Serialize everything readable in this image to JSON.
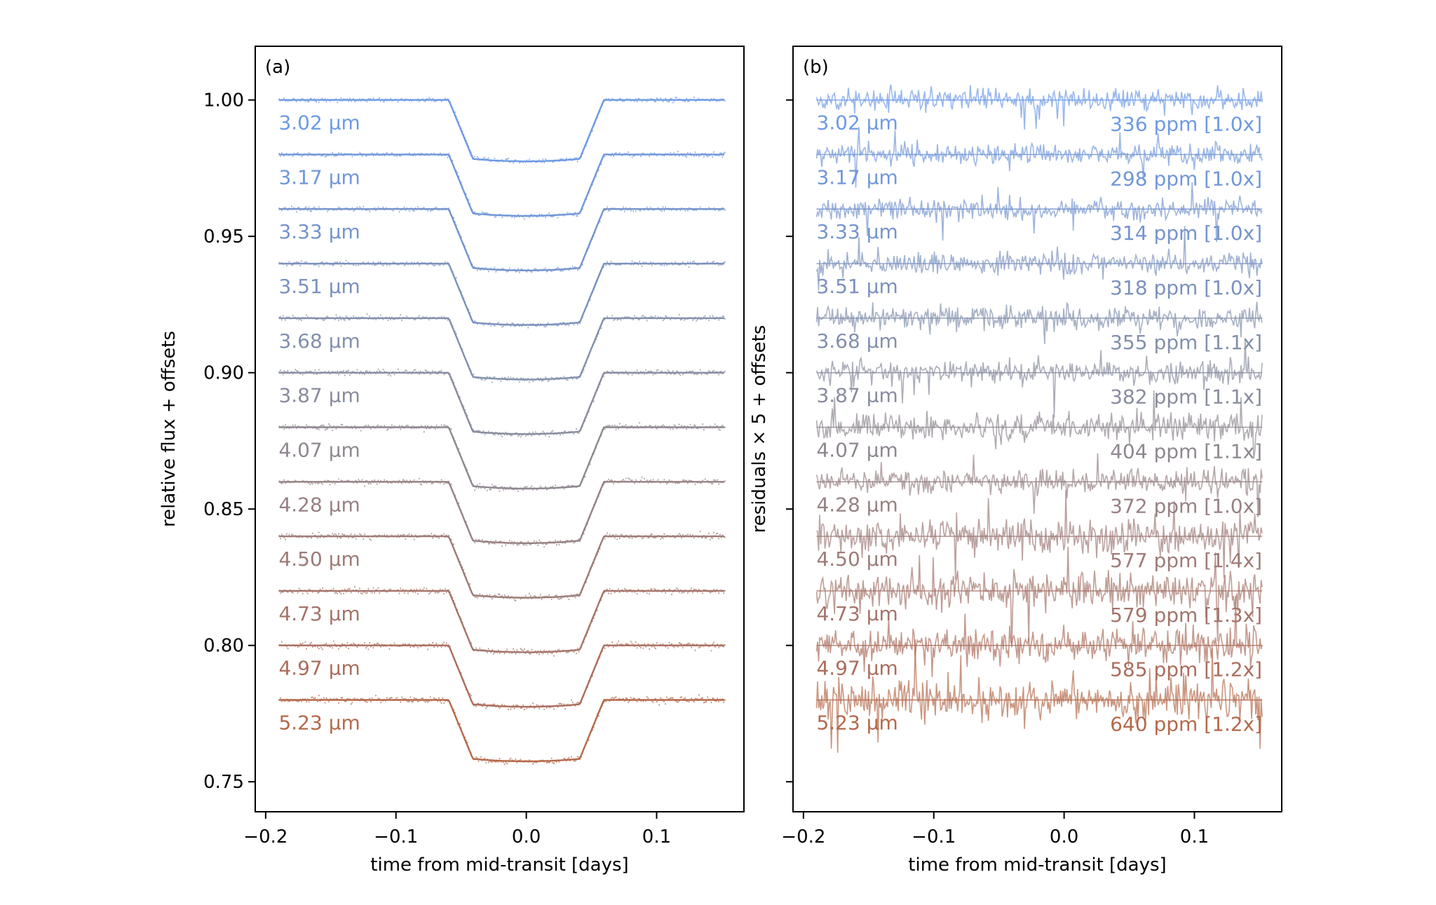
{
  "figure": {
    "panels": [
      {
        "panel_label": "(a)",
        "xlabel": "time from mid-transit [days]",
        "ylabel": "relative flux + offsets",
        "xticks": [
          -0.2,
          -0.1,
          0.0,
          0.1
        ],
        "xtick_labels": [
          "−0.2",
          "−0.1",
          "0.0",
          "0.1"
        ],
        "yticks": [
          1.0,
          0.95,
          0.9,
          0.85,
          0.8,
          0.75
        ],
        "ytick_labels": [
          "1.00",
          "0.95",
          "0.90",
          "0.85",
          "0.80",
          "0.75"
        ]
      },
      {
        "panel_label": "(b)",
        "xlabel": "time from mid-transit [days]",
        "ylabel": "residuals × 5 + offsets",
        "xticks": [
          -0.2,
          -0.1,
          0.0,
          0.1
        ],
        "xtick_labels": [
          "−0.2",
          "−0.1",
          "0.0",
          "0.1"
        ]
      }
    ]
  },
  "chart_data": [
    {
      "type": "line",
      "panel": "(a)",
      "xlabel": "time from mid-transit [days]",
      "ylabel": "relative flux + offsets",
      "xlim": [
        -0.208,
        0.167
      ],
      "ylim": [
        0.739,
        1.0197
      ],
      "transit": {
        "t_first_contact": -0.0595,
        "t_second_contact": -0.041,
        "t_third_contact": 0.041,
        "t_fourth_contact": 0.0595,
        "depth": 0.0225,
        "x_range": [
          -0.19,
          0.152
        ]
      },
      "series": [
        {
          "name": "3.02 μm",
          "offset": 1.0,
          "color": "#6e9ae4"
        },
        {
          "name": "3.17 μm",
          "offset": 0.98,
          "color": "#7197d9"
        },
        {
          "name": "3.33 μm",
          "offset": 0.96,
          "color": "#7594cd"
        },
        {
          "name": "3.51 μm",
          "offset": 0.94,
          "color": "#7b91bd"
        },
        {
          "name": "3.68 μm",
          "offset": 0.92,
          "color": "#8290ac"
        },
        {
          "name": "3.87 μm",
          "offset": 0.9,
          "color": "#888c9e"
        },
        {
          "name": "4.07 μm",
          "offset": 0.88,
          "color": "#8f8790"
        },
        {
          "name": "4.28 μm",
          "offset": 0.86,
          "color": "#978184"
        },
        {
          "name": "4.50 μm",
          "offset": 0.84,
          "color": "#9e7b77"
        },
        {
          "name": "4.73 μm",
          "offset": 0.82,
          "color": "#a4746a"
        },
        {
          "name": "4.97 μm",
          "offset": 0.8,
          "color": "#ab6d5c"
        },
        {
          "name": "5.23 μm",
          "offset": 0.78,
          "color": "#b4694a"
        }
      ]
    },
    {
      "type": "line",
      "panel": "(b)",
      "xlabel": "time from mid-transit [days]",
      "ylabel": "residuals × 5 + offsets",
      "xlim": [
        -0.208,
        0.167
      ],
      "ylim": [
        0.739,
        1.0197
      ],
      "x_range": [
        -0.19,
        0.152
      ],
      "series": [
        {
          "name": "3.02 μm",
          "offset": 1.0,
          "rms_label": "336 ppm [1.0x]",
          "amp": 0.0035,
          "color": "#6e9ae4"
        },
        {
          "name": "3.17 μm",
          "offset": 0.98,
          "rms_label": "298 ppm [1.0x]",
          "amp": 0.0035,
          "color": "#7197d9"
        },
        {
          "name": "3.33 μm",
          "offset": 0.96,
          "rms_label": "314 ppm [1.0x]",
          "amp": 0.0035,
          "color": "#7594cd"
        },
        {
          "name": "3.51 μm",
          "offset": 0.94,
          "rms_label": "318 ppm [1.0x]",
          "amp": 0.0036,
          "color": "#7b91bd"
        },
        {
          "name": "3.68 μm",
          "offset": 0.92,
          "rms_label": "355 ppm [1.1x]",
          "amp": 0.004,
          "color": "#8290ac"
        },
        {
          "name": "3.87 μm",
          "offset": 0.9,
          "rms_label": "382 ppm [1.1x]",
          "amp": 0.0043,
          "color": "#888c9e"
        },
        {
          "name": "4.07 μm",
          "offset": 0.88,
          "rms_label": "404 ppm [1.1x]",
          "amp": 0.0045,
          "color": "#8f8790"
        },
        {
          "name": "4.28 μm",
          "offset": 0.86,
          "rms_label": "372 ppm [1.0x]",
          "amp": 0.0042,
          "color": "#978184"
        },
        {
          "name": "4.50 μm",
          "offset": 0.84,
          "rms_label": "577 ppm [1.4x]",
          "amp": 0.006,
          "color": "#9e7b77"
        },
        {
          "name": "4.73 μm",
          "offset": 0.82,
          "rms_label": "579 ppm [1.3x]",
          "amp": 0.0062,
          "color": "#a4746a"
        },
        {
          "name": "4.97 μm",
          "offset": 0.8,
          "rms_label": "585 ppm [1.2x]",
          "amp": 0.0064,
          "color": "#ab6d5c"
        },
        {
          "name": "5.23 μm",
          "offset": 0.78,
          "rms_label": "640 ppm [1.2x]",
          "amp": 0.0068,
          "color": "#b4694a"
        }
      ]
    }
  ]
}
